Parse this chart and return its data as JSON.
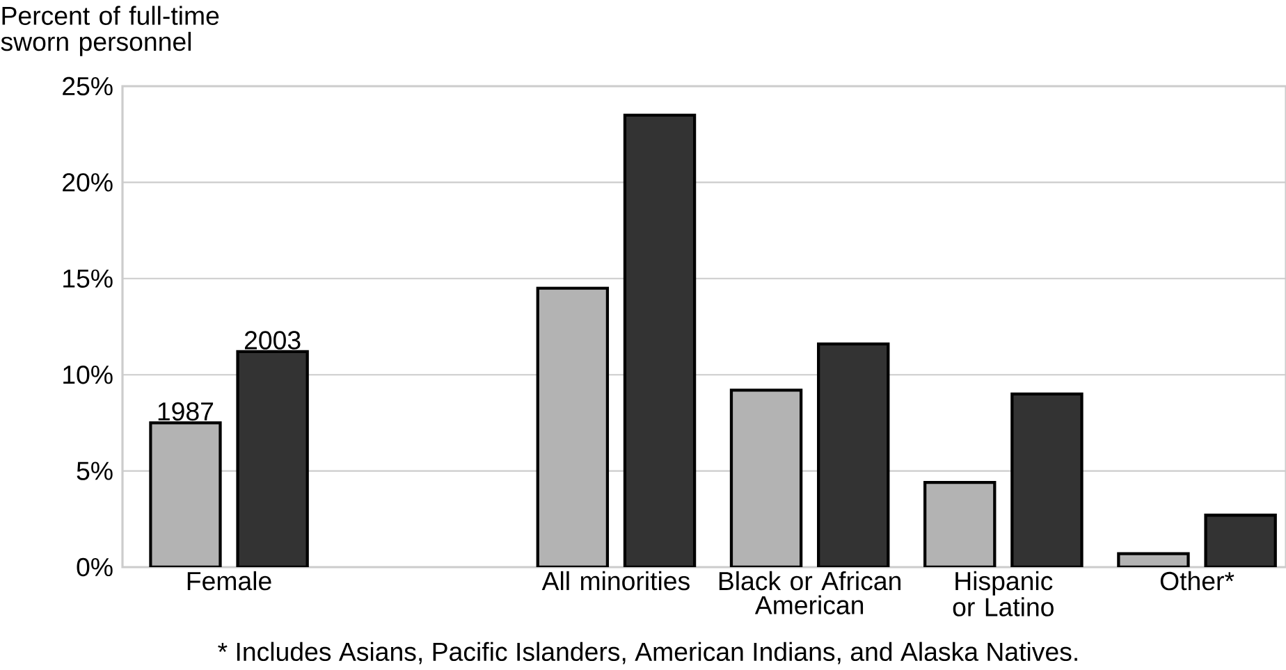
{
  "chart_data": {
    "type": "bar",
    "ylabel": "Percent of full-time sworn personnel",
    "categories": [
      "Female",
      null,
      "All minorities",
      "Black or African American",
      "Hispanic or Latino",
      "Other*"
    ],
    "series": [
      {
        "name": "1987",
        "color": "#b3b3b3",
        "values": [
          7.5,
          null,
          14.5,
          9.2,
          4.4,
          0.7
        ]
      },
      {
        "name": "2003",
        "color": "#333333",
        "values": [
          11.2,
          null,
          23.5,
          11.6,
          9.0,
          2.7
        ]
      }
    ],
    "ylim": [
      0,
      25
    ],
    "yticks": [
      {
        "value": 0,
        "label": "0%"
      },
      {
        "value": 5,
        "label": "5%"
      },
      {
        "value": 10,
        "label": "10%"
      },
      {
        "value": 15,
        "label": "15%"
      },
      {
        "value": 20,
        "label": "20%"
      },
      {
        "value": 25,
        "label": "25%"
      }
    ],
    "grid": "y",
    "annotations": [
      "* Includes Asians, Pacific Islanders, American Indians, and Alaska Natives."
    ]
  }
}
